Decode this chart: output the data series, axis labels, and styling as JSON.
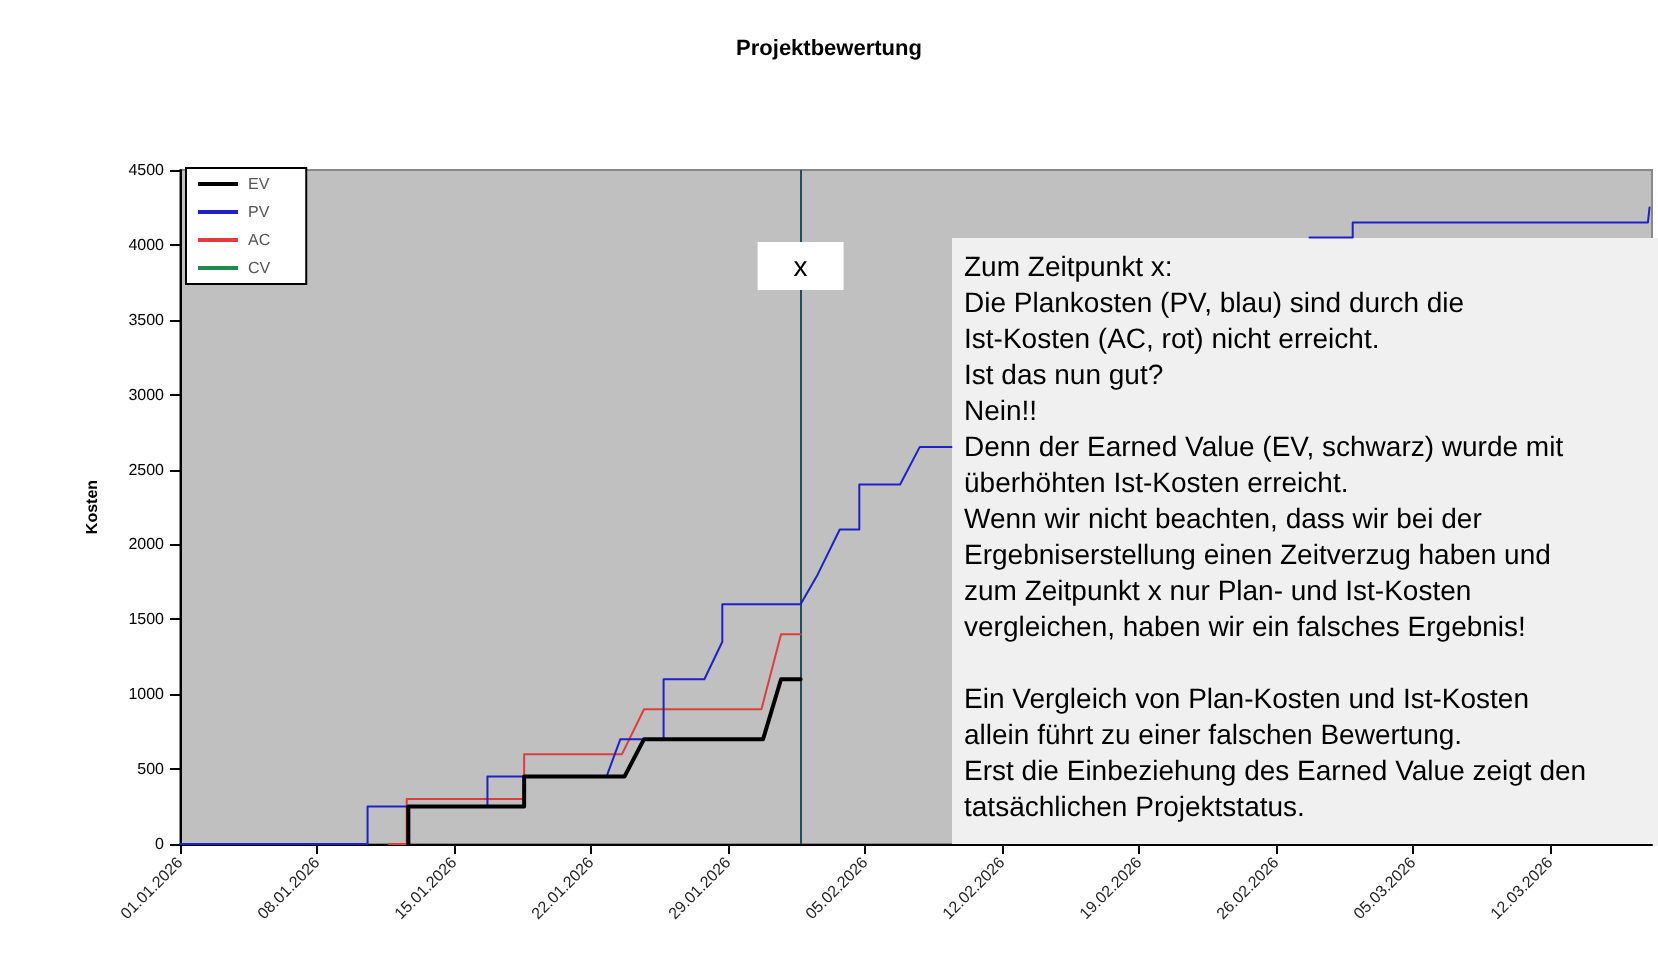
{
  "chart_data": {
    "type": "line",
    "title": "Projektbewertung",
    "ylabel": "Kosten",
    "xlim": [
      "2026-01-01",
      "2026-03-17T05:00"
    ],
    "xticks": [
      {
        "value": "2026-01-01",
        "label": "01.01.2026"
      },
      {
        "value": "2026-01-08",
        "label": "08.01.2026"
      },
      {
        "value": "2026-01-15",
        "label": "15.01.2026"
      },
      {
        "value": "2026-01-22",
        "label": "22.01.2026"
      },
      {
        "value": "2026-01-29",
        "label": "29.01.2026"
      },
      {
        "value": "2026-02-05",
        "label": "05.02.2026"
      },
      {
        "value": "2026-02-12",
        "label": "12.02.2026"
      },
      {
        "value": "2026-02-19",
        "label": "19.02.2026"
      },
      {
        "value": "2026-02-26",
        "label": "26.02.2026"
      },
      {
        "value": "2026-03-05",
        "label": "05.03.2026"
      },
      {
        "value": "2026-03-12",
        "label": "12.03.2026"
      }
    ],
    "ylim": [
      0,
      4500
    ],
    "yticks": [
      0,
      500,
      1000,
      1500,
      2000,
      2500,
      3000,
      3500,
      4000,
      4500
    ],
    "grid": false,
    "legend": "top left",
    "marker": "none",
    "line_style": "solid",
    "series": [
      {
        "name": "EV",
        "color": "#000000",
        "x": [
          "2026-01-12T16:00",
          "2026-01-12T16:00",
          "2026-01-18T14:00",
          "2026-01-18T14:00",
          "2026-01-23T17:00",
          "2026-01-24T17:00",
          "2026-01-30T19:00",
          "2026-01-31T17:00",
          "2026-02-01T17:00"
        ],
        "values": [
          0,
          250,
          250,
          450,
          450,
          700,
          700,
          1100,
          1100
        ]
      },
      {
        "name": "PV",
        "color": "#2020c8",
        "x": [
          "2026-01-01",
          "2026-01-10T14:00",
          "2026-01-10T14:00",
          "2026-01-16T17:00",
          "2026-01-16T17:00",
          "2026-01-22T19:00",
          "2026-01-23T12:00",
          "2026-01-25T17:00",
          "2026-01-25T17:00",
          "2026-01-27T19:00",
          "2026-01-28T17:00",
          "2026-01-28T17:00",
          "2026-02-01T17:00",
          "2026-02-02T14:00",
          "2026-02-03T17:00",
          "2026-02-04T17:00",
          "2026-02-04T17:00",
          "2026-02-06T19:00",
          "2026-02-07T19:00",
          "2026-02-09T10:00",
          "2026-02-18",
          "2026-02-27T17:00",
          "2026-03-01T22:00",
          "2026-03-01T22:00",
          "2026-03-17T00:00",
          "2026-03-17T02:00"
        ],
        "values": [
          0,
          0,
          250,
          250,
          450,
          450,
          700,
          700,
          1100,
          1100,
          1350,
          1600,
          1600,
          1800,
          2100,
          2100,
          2400,
          2400,
          2650,
          2650,
          null,
          4050,
          4050,
          4150,
          4150,
          4250
        ]
      },
      {
        "name": "AC",
        "color": "#e03c3c",
        "x": [
          "2026-01-11T16:00",
          "2026-01-12T14:00",
          "2026-01-12T14:00",
          "2026-01-18T14:00",
          "2026-01-18T14:00",
          "2026-01-23T14:00",
          "2026-01-24T17:00",
          "2026-01-30T17:00",
          "2026-01-31T17:00",
          "2026-02-01T17:00"
        ],
        "values": [
          0,
          0,
          300,
          300,
          600,
          600,
          900,
          900,
          1400,
          1400
        ]
      },
      {
        "name": "CV",
        "color": "#1f8a4c"
      }
    ],
    "ref_lines": [
      {
        "axis": "x",
        "value": "2026-02-01T17:00",
        "label": "x",
        "color": "#1f4e5f"
      }
    ],
    "annotations": [
      "Zum Zeitpunkt x:\nDie Plankosten (PV, blau) sind durch die\nIst-Kosten (AC, rot) nicht erreicht.\nIst das nun gut?\nNein!!\nDenn der Earned Value (EV, schwarz) wurde mit\nüberhöhten Ist-Kosten erreicht.\nWenn wir nicht beachten, dass wir bei der\nErgebniserstellung einen Zeitverzug haben und\nzum Zeitpunkt x nur Plan- und Ist-Kosten\nvergleichen, haben wir ein falsches Ergebnis!\n\nEin Vergleich von Plan-Kosten und Ist-Kosten\nallein führt zu einer falschen Bewertung.\nErst die Einbeziehung des Earned Value zeigt den\ntatsächlichen Projektstatus."
    ]
  }
}
